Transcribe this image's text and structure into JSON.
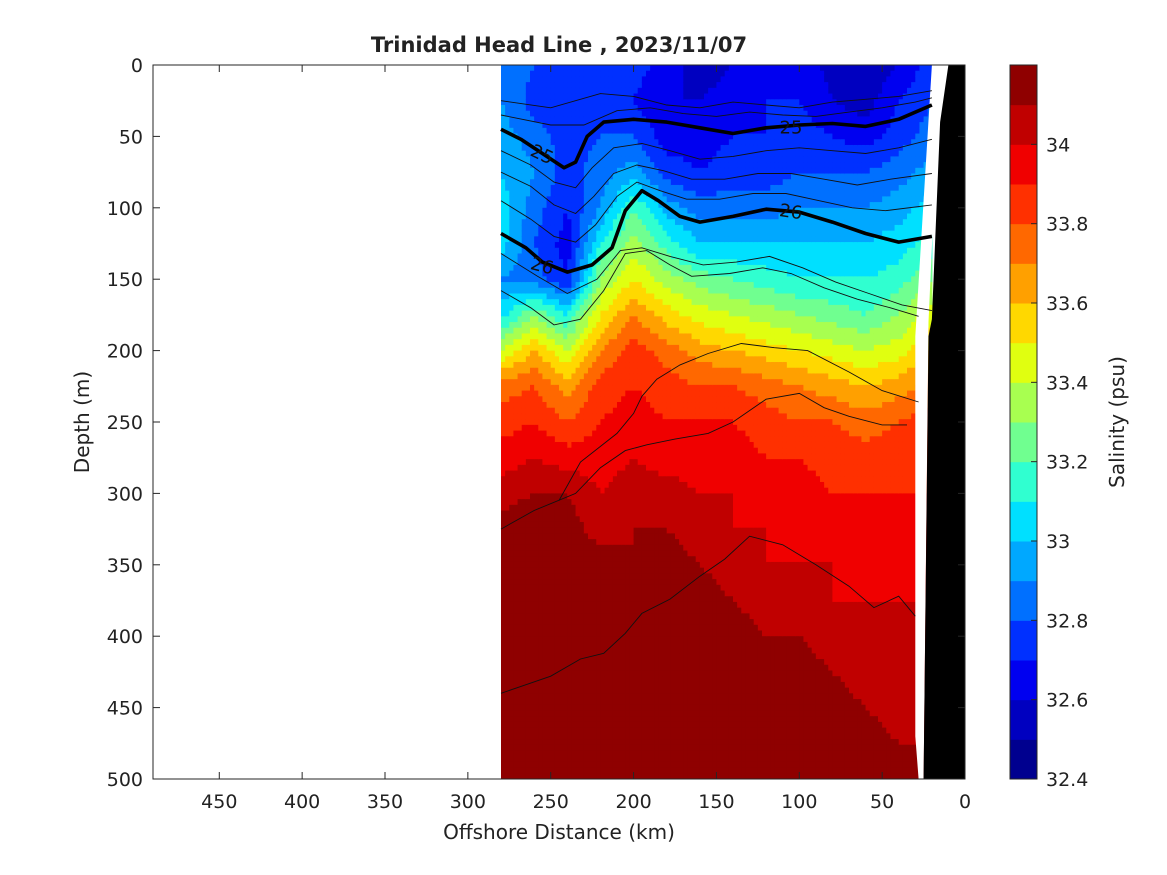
{
  "chart_data": {
    "type": "heatmap",
    "title": "Trinidad Head Line , 2023/11/07",
    "xlabel": "Offshore Distance (km)",
    "ylabel": "Depth (m)",
    "colorbar_label": "Salinity (psu)",
    "xlim": [
      490,
      0
    ],
    "ylim": [
      0,
      500
    ],
    "x_ticks": [
      "450",
      "400",
      "350",
      "300",
      "250",
      "200",
      "150",
      "100",
      "50",
      "0"
    ],
    "x_tick_values": [
      450,
      400,
      350,
      300,
      250,
      200,
      150,
      100,
      50,
      0
    ],
    "y_ticks": [
      "0",
      "50",
      "100",
      "150",
      "200",
      "250",
      "300",
      "350",
      "400",
      "450",
      "500"
    ],
    "y_tick_values": [
      0,
      50,
      100,
      150,
      200,
      250,
      300,
      350,
      400,
      450,
      500
    ],
    "colorbar_ticks": [
      "34",
      "33.8",
      "33.6",
      "33.4",
      "33.2",
      "33",
      "32.8",
      "32.6",
      "32.4"
    ],
    "colorbar_tick_values": [
      34,
      33.8,
      33.6,
      33.4,
      33.2,
      33,
      32.8,
      32.6,
      32.4
    ],
    "colorbar_levels": [
      32.4,
      32.5,
      32.6,
      32.7,
      32.8,
      32.9,
      33.0,
      33.1,
      33.2,
      33.3,
      33.4,
      33.5,
      33.6,
      33.7,
      33.8,
      33.9,
      34.0,
      34.1,
      34.2
    ],
    "colorbar_colors": [
      "#00008f",
      "#0000c0",
      "#0000f0",
      "#0030ff",
      "#0070ff",
      "#00a8ff",
      "#00e0ff",
      "#30ffd0",
      "#70ff90",
      "#a8ff50",
      "#e0ff10",
      "#ffd800",
      "#ffa000",
      "#ff6800",
      "#ff3000",
      "#f00000",
      "#c00000",
      "#8f0000"
    ],
    "section_x_range": [
      280,
      20
    ],
    "section_columns": [
      {
        "x": 280,
        "values": [
          32.9,
          32.9,
          32.95,
          33.0,
          33.05,
          33.05,
          32.9,
          33.05,
          33.4,
          33.75,
          33.85,
          33.95,
          34.05,
          34.15,
          34.25,
          34.3,
          34.3,
          34.35,
          34.35,
          34.4,
          34.4
        ]
      },
      {
        "x": 260,
        "values": [
          32.8,
          32.75,
          32.85,
          32.9,
          32.85,
          32.8,
          32.85,
          33.3,
          33.6,
          33.8,
          33.9,
          34.0,
          34.1,
          34.2,
          34.25,
          34.3,
          34.3,
          34.35,
          34.35,
          34.4,
          34.4
        ]
      },
      {
        "x": 240,
        "values": [
          32.7,
          32.7,
          32.75,
          32.75,
          32.7,
          32.65,
          32.7,
          33.1,
          33.4,
          33.65,
          33.8,
          33.95,
          34.1,
          34.15,
          34.2,
          34.25,
          34.3,
          34.3,
          34.35,
          34.35,
          34.35
        ]
      },
      {
        "x": 220,
        "values": [
          32.8,
          32.75,
          32.8,
          32.85,
          32.9,
          33.1,
          33.3,
          33.5,
          33.7,
          33.85,
          33.9,
          33.95,
          34.0,
          34.05,
          34.15,
          34.2,
          34.25,
          34.3,
          34.3,
          34.3,
          34.3
        ]
      },
      {
        "x": 200,
        "values": [
          32.75,
          32.7,
          32.8,
          32.95,
          33.2,
          33.35,
          33.5,
          33.7,
          33.85,
          33.9,
          33.95,
          34.0,
          34.05,
          34.1,
          34.1,
          34.15,
          34.2,
          34.25,
          34.3,
          34.35,
          34.35
        ]
      },
      {
        "x": 180,
        "values": [
          32.65,
          32.6,
          32.65,
          32.75,
          32.95,
          33.15,
          33.35,
          33.55,
          33.75,
          33.85,
          33.9,
          33.95,
          34.05,
          34.1,
          34.15,
          34.2,
          34.25,
          34.3,
          34.35,
          34.4,
          34.4
        ]
      },
      {
        "x": 160,
        "values": [
          32.55,
          32.6,
          32.65,
          32.7,
          32.85,
          33.0,
          33.25,
          33.45,
          33.65,
          33.8,
          33.9,
          33.95,
          34.0,
          34.05,
          34.1,
          34.15,
          34.2,
          34.25,
          34.3,
          34.35,
          34.35
        ]
      },
      {
        "x": 140,
        "values": [
          32.6,
          32.65,
          32.7,
          32.75,
          32.85,
          33.0,
          33.2,
          33.4,
          33.6,
          33.8,
          33.9,
          33.95,
          34.0,
          34.0,
          34.05,
          34.1,
          34.15,
          34.2,
          34.25,
          34.3,
          34.3
        ]
      },
      {
        "x": 120,
        "values": [
          32.65,
          32.7,
          32.7,
          32.75,
          32.85,
          33.0,
          33.15,
          33.35,
          33.55,
          33.75,
          33.85,
          33.9,
          33.95,
          34.0,
          34.0,
          34.05,
          34.1,
          34.15,
          34.2,
          34.25,
          34.25
        ]
      },
      {
        "x": 100,
        "values": [
          32.7,
          32.7,
          32.75,
          32.8,
          32.9,
          33.0,
          33.1,
          33.3,
          33.5,
          33.7,
          33.8,
          33.9,
          33.95,
          33.95,
          34.0,
          34.05,
          34.1,
          34.15,
          34.2,
          34.2,
          34.25
        ]
      },
      {
        "x": 80,
        "values": [
          32.55,
          32.6,
          32.7,
          32.8,
          32.9,
          33.0,
          33.1,
          33.25,
          33.45,
          33.65,
          33.8,
          33.85,
          33.9,
          33.95,
          34.0,
          34.0,
          34.05,
          34.1,
          34.15,
          34.15,
          34.2
        ]
      },
      {
        "x": 60,
        "values": [
          32.5,
          32.55,
          32.65,
          32.8,
          32.9,
          33.0,
          33.1,
          33.2,
          33.4,
          33.6,
          33.75,
          33.85,
          33.9,
          33.95,
          33.95,
          34.0,
          34.0,
          34.05,
          34.1,
          34.15,
          34.15
        ]
      },
      {
        "x": 40,
        "values": [
          32.6,
          32.7,
          32.75,
          32.85,
          32.95,
          33.05,
          33.15,
          33.3,
          33.45,
          33.65,
          33.8,
          33.85,
          33.9,
          33.9,
          33.95,
          34.0,
          34.0,
          34.05,
          34.05,
          34.1,
          34.1
        ]
      },
      {
        "x": 20,
        "values": [
          32.75,
          32.8,
          32.85,
          32.95,
          33.05,
          33.15,
          33.3,
          33.45,
          33.6,
          33.75,
          33.85,
          33.9,
          33.9,
          33.95,
          34.0,
          34.0,
          34.0,
          34.05,
          34.05,
          34.1,
          34.1
        ]
      }
    ],
    "section_depths": [
      0,
      25,
      50,
      75,
      100,
      125,
      150,
      175,
      200,
      225,
      250,
      275,
      300,
      325,
      350,
      375,
      400,
      425,
      450,
      475,
      500
    ],
    "density_contours": [
      {
        "label": "25",
        "labels": [
          "25",
          "25"
        ],
        "points": [
          [
            280,
            45
          ],
          [
            268,
            52
          ],
          [
            255,
            62
          ],
          [
            242,
            72
          ],
          [
            235,
            68
          ],
          [
            228,
            50
          ],
          [
            218,
            40
          ],
          [
            200,
            38
          ],
          [
            180,
            40
          ],
          [
            160,
            44
          ],
          [
            140,
            48
          ],
          [
            120,
            44
          ],
          [
            100,
            42
          ],
          [
            80,
            41
          ],
          [
            60,
            43
          ],
          [
            40,
            38
          ],
          [
            20,
            28
          ]
        ]
      },
      {
        "label": "26",
        "labels": [
          "26",
          "26"
        ],
        "points": [
          [
            280,
            118
          ],
          [
            265,
            128
          ],
          [
            255,
            138
          ],
          [
            240,
            145
          ],
          [
            225,
            140
          ],
          [
            213,
            128
          ],
          [
            205,
            102
          ],
          [
            195,
            88
          ],
          [
            185,
            95
          ],
          [
            172,
            106
          ],
          [
            160,
            110
          ],
          [
            140,
            106
          ],
          [
            120,
            101
          ],
          [
            100,
            103
          ],
          [
            80,
            110
          ],
          [
            60,
            118
          ],
          [
            40,
            124
          ],
          [
            20,
            120
          ]
        ]
      }
    ],
    "density_thin_contours": [
      [
        [
          280,
          25
        ],
        [
          250,
          30
        ],
        [
          220,
          20
        ],
        [
          200,
          22
        ],
        [
          180,
          28
        ],
        [
          160,
          30
        ],
        [
          140,
          26
        ],
        [
          120,
          28
        ],
        [
          100,
          30
        ],
        [
          80,
          26
        ],
        [
          60,
          24
        ],
        [
          40,
          22
        ],
        [
          20,
          18
        ]
      ],
      [
        [
          280,
          35
        ],
        [
          250,
          42
        ],
        [
          230,
          42
        ],
        [
          210,
          32
        ],
        [
          190,
          30
        ],
        [
          170,
          34
        ],
        [
          150,
          36
        ],
        [
          130,
          33
        ],
        [
          110,
          35
        ],
        [
          90,
          36
        ],
        [
          70,
          33
        ],
        [
          50,
          30
        ],
        [
          30,
          26
        ],
        [
          20,
          23
        ]
      ],
      [
        [
          280,
          60
        ],
        [
          262,
          70
        ],
        [
          248,
          82
        ],
        [
          235,
          86
        ],
        [
          225,
          72
        ],
        [
          212,
          58
        ],
        [
          195,
          55
        ],
        [
          178,
          60
        ],
        [
          160,
          66
        ],
        [
          140,
          64
        ],
        [
          120,
          60
        ],
        [
          100,
          58
        ],
        [
          80,
          60
        ],
        [
          60,
          62
        ],
        [
          40,
          58
        ],
        [
          20,
          52
        ]
      ],
      [
        [
          280,
          75
        ],
        [
          262,
          85
        ],
        [
          248,
          98
        ],
        [
          235,
          104
        ],
        [
          224,
          92
        ],
        [
          212,
          76
        ],
        [
          198,
          70
        ],
        [
          182,
          74
        ],
        [
          165,
          80
        ],
        [
          145,
          80
        ],
        [
          125,
          76
        ],
        [
          105,
          76
        ],
        [
          85,
          80
        ],
        [
          65,
          84
        ],
        [
          45,
          80
        ],
        [
          20,
          76
        ]
      ],
      [
        [
          280,
          95
        ],
        [
          262,
          108
        ],
        [
          248,
          120
        ],
        [
          235,
          124
        ],
        [
          223,
          112
        ],
        [
          210,
          92
        ],
        [
          198,
          82
        ],
        [
          184,
          88
        ],
        [
          168,
          94
        ],
        [
          148,
          94
        ],
        [
          128,
          90
        ],
        [
          108,
          90
        ],
        [
          88,
          95
        ],
        [
          68,
          100
        ],
        [
          48,
          102
        ],
        [
          20,
          98
        ]
      ],
      [
        [
          280,
          132
        ],
        [
          258,
          148
        ],
        [
          240,
          160
        ],
        [
          222,
          150
        ],
        [
          208,
          130
        ],
        [
          195,
          128
        ],
        [
          178,
          134
        ],
        [
          158,
          140
        ],
        [
          138,
          138
        ],
        [
          118,
          134
        ],
        [
          98,
          142
        ],
        [
          78,
          152
        ],
        [
          58,
          160
        ],
        [
          38,
          168
        ],
        [
          20,
          172
        ]
      ],
      [
        [
          280,
          158
        ],
        [
          262,
          170
        ],
        [
          248,
          182
        ],
        [
          232,
          178
        ],
        [
          218,
          158
        ],
        [
          205,
          132
        ],
        [
          192,
          130
        ],
        [
          178,
          140
        ],
        [
          165,
          148
        ],
        [
          142,
          146
        ],
        [
          122,
          142
        ],
        [
          105,
          146
        ],
        [
          85,
          156
        ],
        [
          65,
          164
        ],
        [
          45,
          170
        ],
        [
          28,
          176
        ]
      ],
      [
        [
          245,
          305
        ],
        [
          232,
          278
        ],
        [
          210,
          258
        ],
        [
          200,
          244
        ],
        [
          195,
          232
        ],
        [
          186,
          220
        ],
        [
          172,
          210
        ],
        [
          155,
          202
        ],
        [
          135,
          195
        ],
        [
          115,
          198
        ],
        [
          95,
          200
        ],
        [
          70,
          215
        ],
        [
          50,
          228
        ],
        [
          28,
          236
        ]
      ],
      [
        [
          280,
          325
        ],
        [
          260,
          312
        ],
        [
          235,
          300
        ],
        [
          220,
          282
        ],
        [
          205,
          270
        ],
        [
          192,
          266
        ],
        [
          175,
          262
        ],
        [
          155,
          258
        ],
        [
          140,
          250
        ],
        [
          120,
          234
        ],
        [
          100,
          230
        ],
        [
          85,
          240
        ],
        [
          70,
          246
        ],
        [
          50,
          252
        ],
        [
          35,
          252
        ]
      ],
      [
        [
          280,
          440
        ],
        [
          250,
          428
        ],
        [
          232,
          416
        ],
        [
          218,
          412
        ],
        [
          205,
          398
        ],
        [
          195,
          384
        ],
        [
          178,
          374
        ],
        [
          160,
          358
        ],
        [
          145,
          346
        ],
        [
          130,
          330
        ],
        [
          110,
          336
        ],
        [
          90,
          350
        ],
        [
          70,
          365
        ],
        [
          55,
          380
        ],
        [
          40,
          372
        ],
        [
          30,
          386
        ]
      ]
    ],
    "bathymetry": [
      [
        25,
        500
      ],
      [
        22,
        190
      ],
      [
        20,
        178
      ],
      [
        15,
        40
      ],
      [
        10,
        0
      ],
      [
        0,
        0
      ],
      [
        0,
        500
      ]
    ],
    "grid": false,
    "legend": "none"
  }
}
